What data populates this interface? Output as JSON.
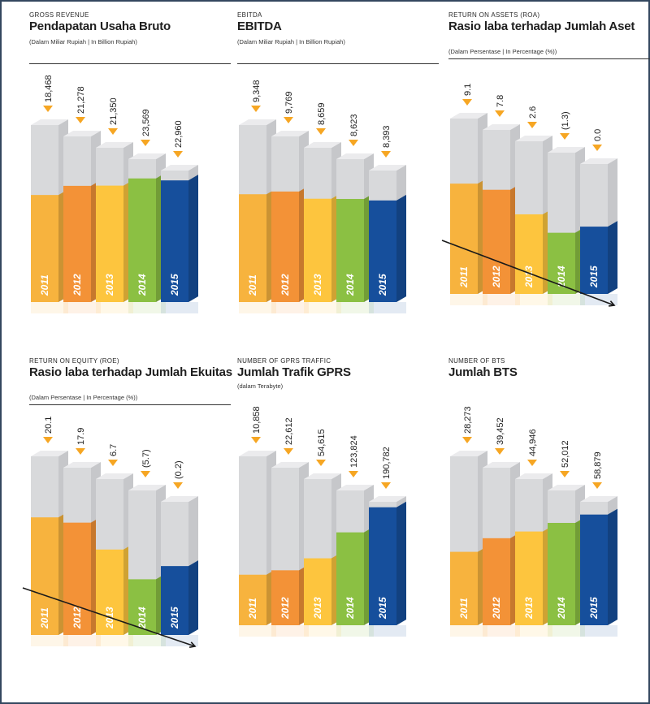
{
  "colors": {
    "2011": "#f7b33e",
    "2012": "#f39237",
    "2013": "#fdc53e",
    "2014": "#8bc043",
    "2015": "#164f9c",
    "pillar": "#d8d9db",
    "arrow": "#f6a623"
  },
  "chart_data": [
    {
      "type": "bar",
      "caption": "GROSS REVENUE",
      "title": "Pendapatan Usaha Bruto",
      "subtitle": "(Dalam Miliar Rupiah | In Billion Rupiah)",
      "categories": [
        "2011",
        "2012",
        "2013",
        "2014",
        "2015"
      ],
      "values": [
        18468,
        21278,
        21350,
        23569,
        22960
      ],
      "labels": [
        "18,468",
        "21,278",
        "21,350",
        "23,569",
        "22,960"
      ],
      "ylim": [
        0,
        30000
      ],
      "trend_line": false
    },
    {
      "type": "bar",
      "caption": "EBITDA",
      "title": "EBITDA",
      "subtitle": "(Dalam Miliar Rupiah | In Billion Rupiah)",
      "categories": [
        "2011",
        "2012",
        "2013",
        "2014",
        "2015"
      ],
      "values": [
        9348,
        9769,
        8659,
        8623,
        8393
      ],
      "labels": [
        "9,348",
        "9,769",
        "8,659",
        "8,623",
        "8,393"
      ],
      "ylim": [
        0,
        15000
      ],
      "trend_line": false
    },
    {
      "type": "bar",
      "caption": "RETURN ON ASSETS (ROA)",
      "title": "Rasio laba terhadap Jumlah Aset",
      "subtitle": "(Dalam Persentase | In Percentage (%))",
      "categories": [
        "2011",
        "2012",
        "2013",
        "2014",
        "2015"
      ],
      "values": [
        9.1,
        7.8,
        2.6,
        -1.3,
        0.0
      ],
      "labels": [
        "9.1",
        "7.8",
        "2.6",
        "(1.3)",
        "0.0"
      ],
      "ylim": [
        -6,
        16
      ],
      "trend_line": true
    },
    {
      "type": "bar",
      "caption": "RETURN ON EQUITY (ROE)",
      "title": "Rasio laba terhadap Jumlah Ekuitas",
      "subtitle": "(Dalam Persentase | In Percentage (%))",
      "categories": [
        "2011",
        "2012",
        "2013",
        "2014",
        "2015"
      ],
      "values": [
        20.1,
        17.9,
        6.7,
        -5.7,
        -0.2
      ],
      "labels": [
        "20.1",
        "17.9",
        "6.7",
        "(5.7)",
        "(0.2)"
      ],
      "ylim": [
        -12,
        32
      ],
      "trend_line": true
    },
    {
      "type": "bar",
      "caption": "NUMBER OF GPRS TRAFFIC",
      "title": "Jumlah Trafik GPRS",
      "subtitle": "(dalam Terabyte)",
      "categories": [
        "2011",
        "2012",
        "2013",
        "2014",
        "2015"
      ],
      "values": [
        10858,
        22612,
        54615,
        123824,
        190782
      ],
      "labels": [
        "10,858",
        "22,612",
        "54,615",
        "123,824",
        "190,782"
      ],
      "ylim": [
        -20000,
        240000
      ],
      "trend_line": false
    },
    {
      "type": "bar",
      "caption": "NUMBER OF BTS",
      "title": "Jumlah BTS",
      "subtitle": "",
      "categories": [
        "2011",
        "2012",
        "2013",
        "2014",
        "2015"
      ],
      "values": [
        28273,
        39452,
        44946,
        52012,
        58879
      ],
      "labels": [
        "28,273",
        "39,452",
        "44,946",
        "52,012",
        "58,879"
      ],
      "ylim": [
        0,
        80000
      ],
      "trend_line": false
    }
  ]
}
